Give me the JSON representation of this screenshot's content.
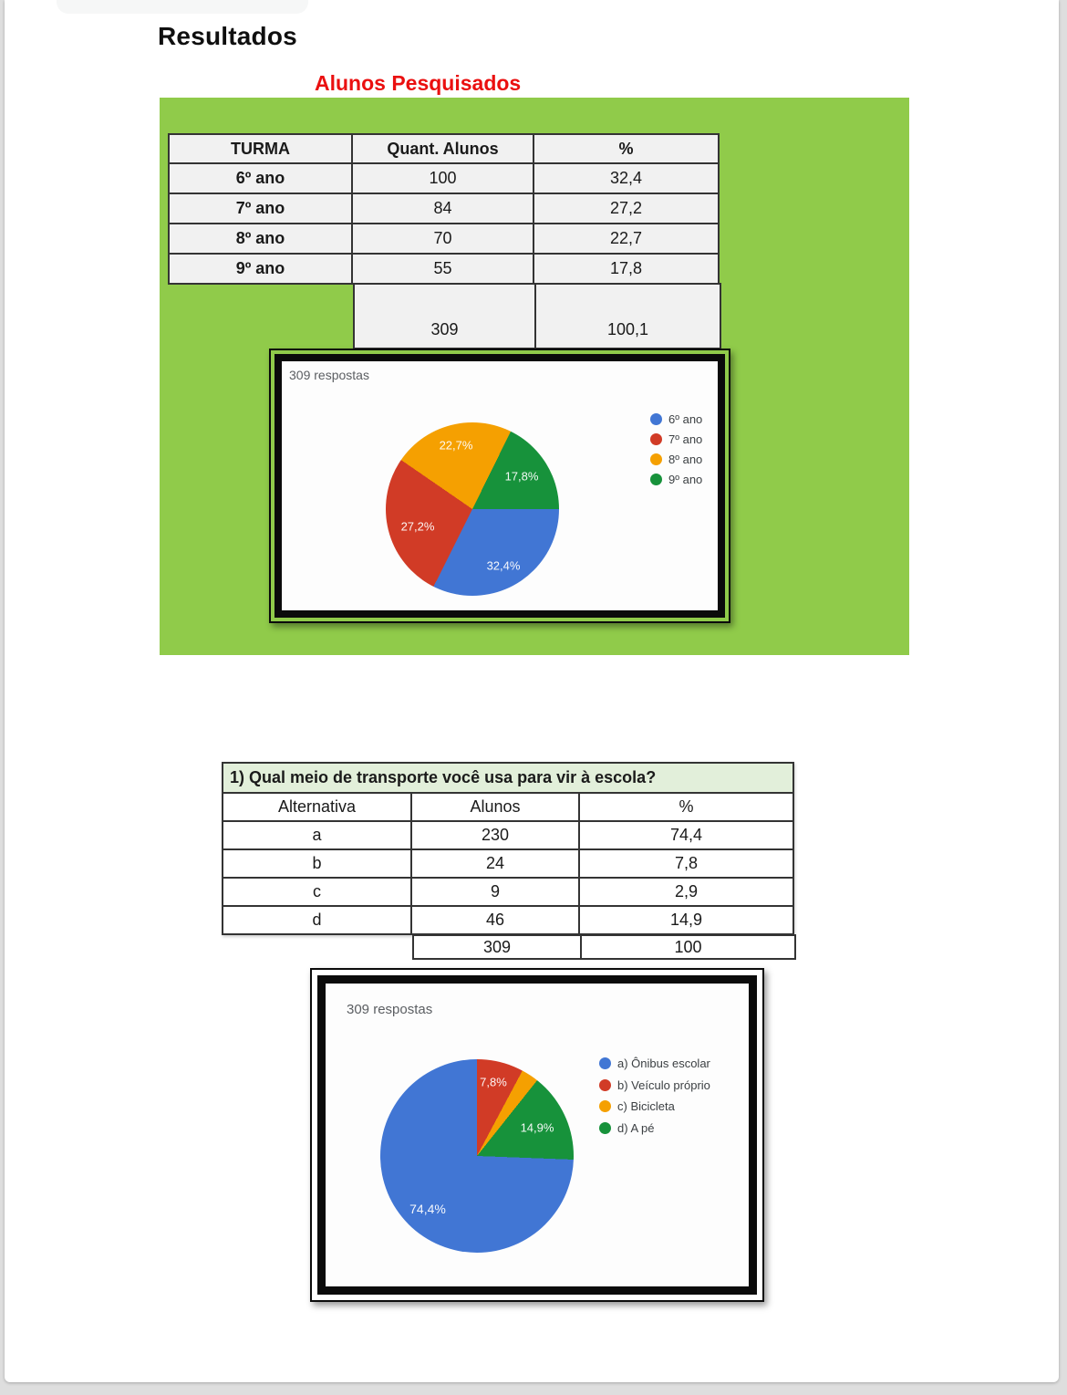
{
  "page": {
    "title": "Resultados"
  },
  "section1": {
    "heading": "Alunos Pesquisados",
    "table": {
      "headers": [
        "TURMA",
        "Quant. Alunos",
        "%"
      ],
      "rows": [
        [
          "6º ano",
          "100",
          "32,4"
        ],
        [
          "7º ano",
          "84",
          "27,2"
        ],
        [
          "8º ano",
          "70",
          "22,7"
        ],
        [
          "9º ano",
          "55",
          "17,8"
        ]
      ],
      "total": [
        "309",
        "100,1"
      ]
    },
    "chart": {
      "responses": "309 respostas",
      "value_labels": [
        "32,4%",
        "27,2%",
        "22,7%",
        "17,8%"
      ],
      "legend": [
        "6º ano",
        "7º ano",
        "8º ano",
        "9º ano"
      ]
    }
  },
  "section2": {
    "table": {
      "title": "1) Qual meio de transporte você usa para vir à escola?",
      "headers": [
        "Alternativa",
        "Alunos",
        "%"
      ],
      "rows": [
        [
          "a",
          "230",
          "74,4"
        ],
        [
          "b",
          "24",
          "7,8"
        ],
        [
          "c",
          "9",
          "2,9"
        ],
        [
          "d",
          "46",
          "14,9"
        ]
      ],
      "total": [
        "309",
        "100"
      ]
    },
    "chart": {
      "responses": "309 respostas",
      "value_labels": [
        "74,4%",
        "7,8%",
        "14,9%"
      ],
      "legend": [
        "a) Ônibus escolar",
        "b) Veículo próprio",
        "c) Bicicleta",
        "d) A pé"
      ]
    }
  },
  "colors": {
    "section_background_green": "#90CB4A",
    "heading_red": "#EA1010",
    "table_title_green": "#E2EFDA",
    "pie_blue": "#4176D4",
    "pie_red": "#D13B26",
    "pie_orange": "#F5A001",
    "pie_green": "#17923B"
  },
  "chart_data": [
    {
      "type": "pie",
      "title": "Alunos Pesquisados",
      "note": "309 respostas",
      "labels": [
        "6º ano",
        "7º ano",
        "8º ano",
        "9º ano"
      ],
      "values": [
        32.4,
        27.2,
        22.7,
        17.8
      ],
      "counts": [
        100,
        84,
        70,
        55
      ],
      "colors": [
        "#4176D4",
        "#D13B26",
        "#F5A001",
        "#17923B"
      ],
      "legend_position": "right",
      "start_deg": 90,
      "draw_order": [
        0,
        1,
        2,
        3
      ]
    },
    {
      "type": "pie",
      "title": "1) Qual meio de transporte você usa para vir à escola?",
      "note": "309 respostas",
      "labels": [
        "a) Ônibus escolar",
        "b) Veículo próprio",
        "c) Bicicleta",
        "d) A pé"
      ],
      "values": [
        74.4,
        7.8,
        2.9,
        14.9
      ],
      "counts": [
        230,
        24,
        9,
        46
      ],
      "colors": [
        "#4176D4",
        "#D13B26",
        "#F5A001",
        "#17923B"
      ],
      "legend_position": "right",
      "start_deg": 0,
      "draw_order": [
        1,
        2,
        3,
        0
      ]
    }
  ]
}
